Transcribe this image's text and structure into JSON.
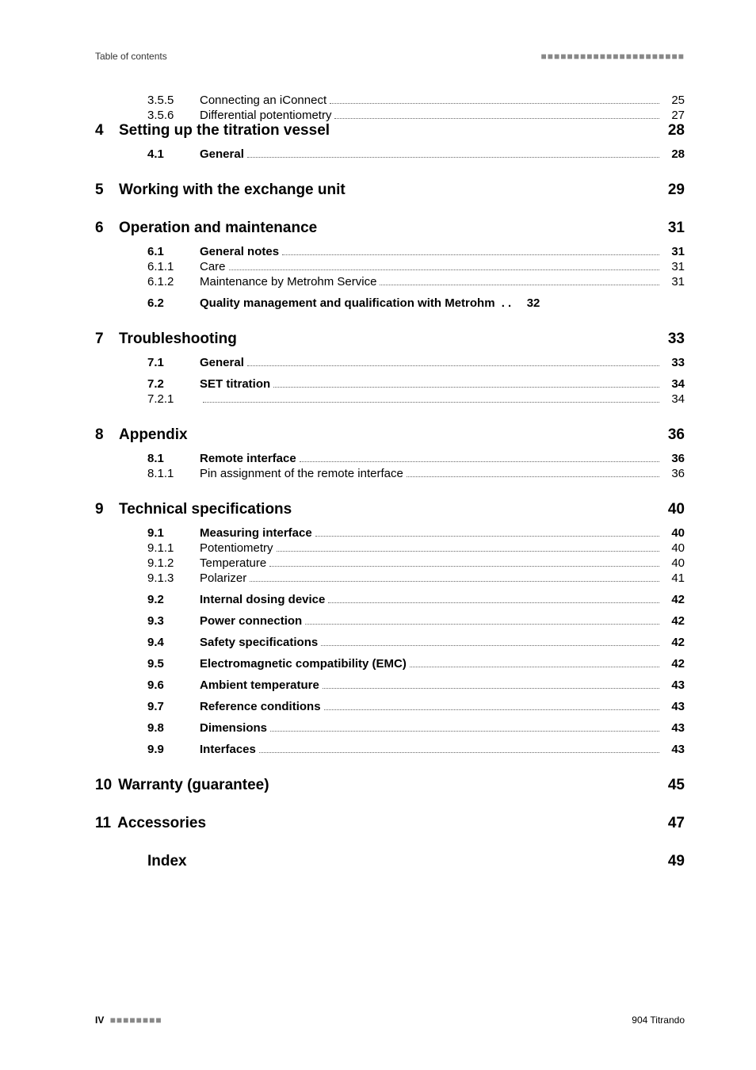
{
  "running_head": {
    "left": "Table of contents",
    "right_dashes": "■■■■■■■■■■■■■■■■■■■■■■"
  },
  "footer": {
    "page_number": "IV",
    "left_dashes": "■■■■■■■■",
    "right": "904 Titrando"
  },
  "toc": [
    {
      "type": "plain",
      "indent": 1,
      "num": "3.5.5",
      "title": "Connecting an iConnect",
      "page": "25"
    },
    {
      "type": "plain",
      "indent": 1,
      "num": "3.5.6",
      "title": "Differential potentiometry",
      "page": "27"
    },
    {
      "type": "chapter",
      "num": "4",
      "title": "Setting up the titration vessel",
      "page": "28"
    },
    {
      "type": "bold",
      "indent": 1,
      "num": "4.1",
      "title": "General",
      "page": "28"
    },
    {
      "type": "chapter",
      "num": "5",
      "title": "Working with the exchange unit",
      "page": "29"
    },
    {
      "type": "chapter",
      "num": "6",
      "title": "Operation and maintenance",
      "page": "31"
    },
    {
      "type": "bold",
      "indent": 1,
      "num": "6.1",
      "title": "General notes",
      "page": "31"
    },
    {
      "type": "plain",
      "indent": 1,
      "num": "6.1.1",
      "title": "Care",
      "page": "31"
    },
    {
      "type": "plain",
      "indent": 1,
      "num": "6.1.2",
      "title": "Maintenance by Metrohm Service",
      "page": "31"
    },
    {
      "type": "bold",
      "indent": 1,
      "num": "6.2",
      "title": "Quality management and qualification with Metrohm",
      "leader": "spaced-dots",
      "page": "32"
    },
    {
      "type": "chapter",
      "num": "7",
      "title": "Troubleshooting",
      "page": "33"
    },
    {
      "type": "bold",
      "indent": 1,
      "num": "7.1",
      "title": "General",
      "page": "33"
    },
    {
      "type": "bold",
      "indent": 1,
      "num": "7.2",
      "title": "SET titration",
      "page": "34"
    },
    {
      "type": "plain",
      "indent": 1,
      "num": "7.2.1",
      "title": "",
      "page": "34"
    },
    {
      "type": "chapter",
      "num": "8",
      "title": "Appendix",
      "page": "36"
    },
    {
      "type": "bold",
      "indent": 1,
      "num": "8.1",
      "title": "Remote interface",
      "page": "36"
    },
    {
      "type": "plain",
      "indent": 1,
      "num": "8.1.1",
      "title": "Pin assignment of the remote interface",
      "page": "36"
    },
    {
      "type": "chapter",
      "num": "9",
      "title": "Technical specifications",
      "page": "40"
    },
    {
      "type": "bold",
      "indent": 1,
      "num": "9.1",
      "title": "Measuring interface",
      "page": "40"
    },
    {
      "type": "plain",
      "indent": 1,
      "num": "9.1.1",
      "title": "Potentiometry",
      "page": "40"
    },
    {
      "type": "plain",
      "indent": 1,
      "num": "9.1.2",
      "title": "Temperature",
      "page": "40"
    },
    {
      "type": "plain",
      "indent": 1,
      "num": "9.1.3",
      "title": "Polarizer",
      "page": "41"
    },
    {
      "type": "bold",
      "indent": 1,
      "num": "9.2",
      "title": "Internal dosing device",
      "page": "42"
    },
    {
      "type": "bold",
      "indent": 1,
      "num": "9.3",
      "title": "Power connection",
      "page": "42"
    },
    {
      "type": "bold",
      "indent": 1,
      "num": "9.4",
      "title": "Safety specifications",
      "page": "42"
    },
    {
      "type": "bold",
      "indent": 1,
      "num": "9.5",
      "title": "Electromagnetic compatibility (EMC)",
      "page": "42"
    },
    {
      "type": "bold",
      "indent": 1,
      "num": "9.6",
      "title": "Ambient temperature",
      "page": "43"
    },
    {
      "type": "bold",
      "indent": 1,
      "num": "9.7",
      "title": "Reference conditions",
      "page": "43"
    },
    {
      "type": "bold",
      "indent": 1,
      "num": "9.8",
      "title": "Dimensions",
      "page": "43"
    },
    {
      "type": "bold",
      "indent": 1,
      "num": "9.9",
      "title": "Interfaces",
      "page": "43"
    },
    {
      "type": "chapter",
      "num": "10",
      "title": "Warranty (guarantee)",
      "page": "45",
      "tight_num": true
    },
    {
      "type": "chapter",
      "num": "11",
      "title": "Accessories",
      "page": "47",
      "tight_num": true
    },
    {
      "type": "index",
      "title": "Index",
      "page": "49"
    }
  ]
}
